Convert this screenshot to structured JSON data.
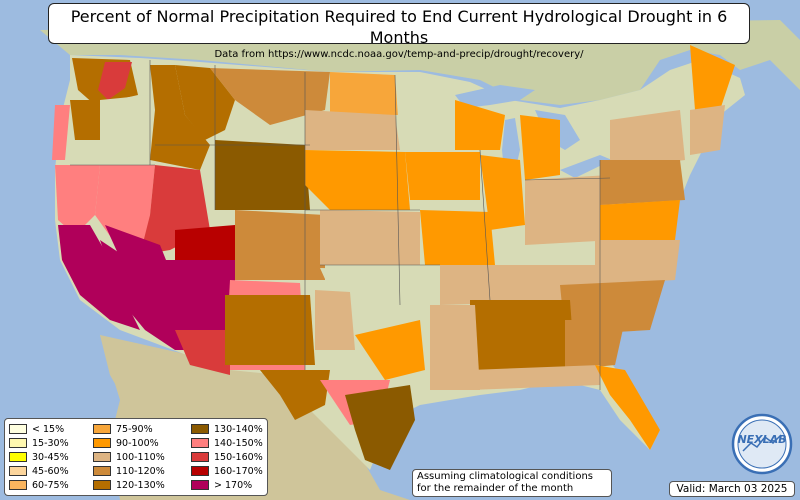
{
  "header": {
    "title": "Percent of Normal Precipitation Required to End Current Hydrological Drought in 6 Months",
    "subtitle": "Data from https://www.ncdc.noaa.gov/temp-and-precip/drought/recovery/"
  },
  "legend": {
    "items": [
      {
        "label": "< 15%",
        "color": "#ffffe0"
      },
      {
        "label": "15-30%",
        "color": "#fff8b0"
      },
      {
        "label": "30-45%",
        "color": "#ffff00"
      },
      {
        "label": "45-60%",
        "color": "#fcd59c"
      },
      {
        "label": "60-75%",
        "color": "#f9b45e"
      },
      {
        "label": "75-90%",
        "color": "#f7a63a"
      },
      {
        "label": "90-100%",
        "color": "#ff9900"
      },
      {
        "label": "100-110%",
        "color": "#ddb483"
      },
      {
        "label": "110-120%",
        "color": "#cd8a3a"
      },
      {
        "label": "120-130%",
        "color": "#b46e00"
      },
      {
        "label": "130-140%",
        "color": "#8b5a00"
      },
      {
        "label": "140-150%",
        "color": "#ff7f7f"
      },
      {
        "label": "150-160%",
        "color": "#d93b3b"
      },
      {
        "label": "160-170%",
        "color": "#b80000"
      },
      {
        "label": "> 170%",
        "color": "#b0005a"
      }
    ]
  },
  "note": {
    "line1": "Assuming climatological conditions",
    "line2": "for the remainder of the month"
  },
  "valid": "Valid: March 03 2025",
  "logo_text": "NEXLAB"
}
